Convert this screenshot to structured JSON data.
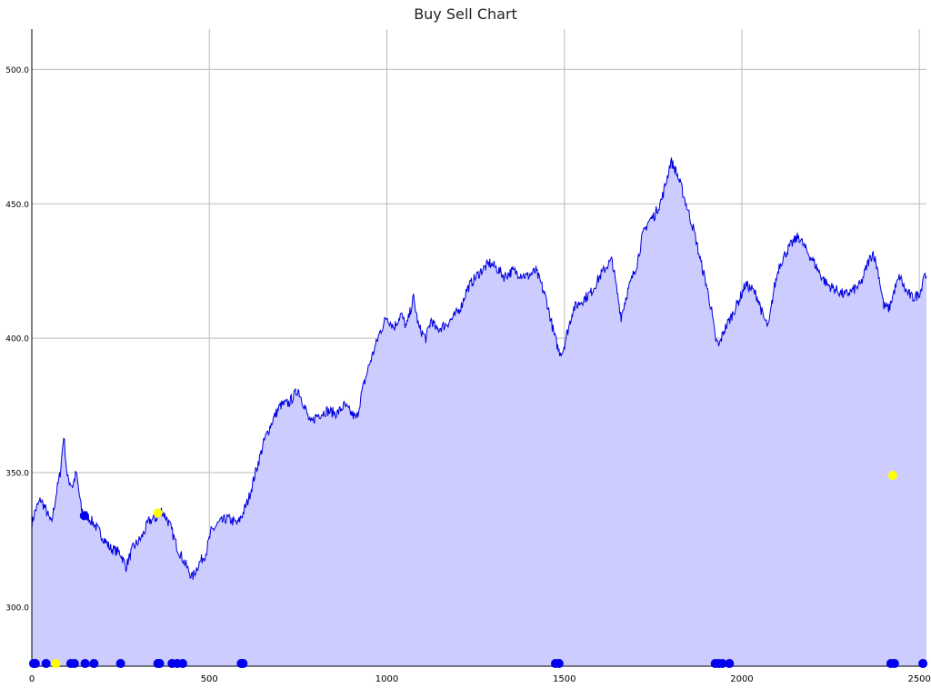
{
  "chart_data": {
    "type": "area",
    "title": "Buy Sell Chart",
    "xlabel": "",
    "ylabel": "",
    "xlim": [
      0,
      2520
    ],
    "ylim": [
      278,
      515
    ],
    "x_ticks": [
      0,
      500,
      1000,
      1500,
      2000,
      2500
    ],
    "y_ticks": [
      300,
      350,
      400,
      450,
      500
    ],
    "x_tick_labels": [
      "0",
      "500",
      "1000",
      "1500",
      "2000",
      "2500"
    ],
    "y_tick_labels": [
      "300.0",
      "350.0",
      "400.0",
      "450.0",
      "500.0"
    ],
    "grid": true,
    "colors": {
      "line": "#0000dd",
      "fill": "#ccccff",
      "buy_marker": "#0000ee",
      "sell_marker": "#ffff00",
      "grid": "#bbbbbb"
    },
    "series": [
      {
        "style": "filled-line",
        "points": [
          [
            0,
            331
          ],
          [
            10,
            336
          ],
          [
            25,
            340
          ],
          [
            40,
            336
          ],
          [
            55,
            331
          ],
          [
            70,
            343
          ],
          [
            80,
            350
          ],
          [
            90,
            364
          ],
          [
            100,
            348
          ],
          [
            115,
            345
          ],
          [
            125,
            350
          ],
          [
            140,
            336
          ],
          [
            155,
            334
          ],
          [
            175,
            331
          ],
          [
            200,
            326
          ],
          [
            220,
            322
          ],
          [
            250,
            320
          ],
          [
            265,
            315
          ],
          [
            285,
            322
          ],
          [
            310,
            326
          ],
          [
            330,
            332
          ],
          [
            350,
            333
          ],
          [
            365,
            336
          ],
          [
            380,
            333
          ],
          [
            390,
            330
          ],
          [
            410,
            322
          ],
          [
            425,
            318
          ],
          [
            440,
            314
          ],
          [
            452,
            311
          ],
          [
            470,
            316
          ],
          [
            490,
            320
          ],
          [
            505,
            328
          ],
          [
            525,
            331
          ],
          [
            550,
            333
          ],
          [
            580,
            331
          ],
          [
            595,
            335
          ],
          [
            610,
            340
          ],
          [
            630,
            350
          ],
          [
            655,
            362
          ],
          [
            680,
            370
          ],
          [
            700,
            375
          ],
          [
            725,
            376
          ],
          [
            750,
            381
          ],
          [
            770,
            374
          ],
          [
            785,
            368
          ],
          [
            800,
            371
          ],
          [
            830,
            373
          ],
          [
            860,
            372
          ],
          [
            880,
            375
          ],
          [
            900,
            372
          ],
          [
            915,
            370
          ],
          [
            930,
            380
          ],
          [
            950,
            390
          ],
          [
            980,
            402
          ],
          [
            1000,
            408
          ],
          [
            1020,
            404
          ],
          [
            1040,
            409
          ],
          [
            1055,
            404
          ],
          [
            1075,
            415
          ],
          [
            1090,
            404
          ],
          [
            1110,
            400
          ],
          [
            1125,
            407
          ],
          [
            1140,
            403
          ],
          [
            1165,
            405
          ],
          [
            1190,
            408
          ],
          [
            1210,
            412
          ],
          [
            1225,
            418
          ],
          [
            1240,
            421
          ],
          [
            1265,
            425
          ],
          [
            1290,
            428
          ],
          [
            1310,
            426
          ],
          [
            1330,
            423
          ],
          [
            1355,
            425
          ],
          [
            1375,
            424
          ],
          [
            1395,
            423
          ],
          [
            1420,
            425
          ],
          [
            1435,
            420
          ],
          [
            1450,
            414
          ],
          [
            1470,
            402
          ],
          [
            1485,
            395
          ],
          [
            1495,
            395
          ],
          [
            1510,
            403
          ],
          [
            1525,
            411
          ],
          [
            1550,
            414
          ],
          [
            1575,
            417
          ],
          [
            1600,
            423
          ],
          [
            1620,
            427
          ],
          [
            1635,
            429
          ],
          [
            1645,
            420
          ],
          [
            1660,
            408
          ],
          [
            1675,
            416
          ],
          [
            1690,
            422
          ],
          [
            1705,
            428
          ],
          [
            1720,
            438
          ],
          [
            1735,
            443
          ],
          [
            1755,
            446
          ],
          [
            1775,
            452
          ],
          [
            1790,
            460
          ],
          [
            1800,
            466
          ],
          [
            1815,
            462
          ],
          [
            1830,
            456
          ],
          [
            1845,
            449
          ],
          [
            1865,
            440
          ],
          [
            1885,
            428
          ],
          [
            1900,
            420
          ],
          [
            1915,
            410
          ],
          [
            1925,
            400
          ],
          [
            1935,
            397
          ],
          [
            1950,
            403
          ],
          [
            1970,
            408
          ],
          [
            1995,
            415
          ],
          [
            2010,
            420
          ],
          [
            2030,
            418
          ],
          [
            2045,
            415
          ],
          [
            2060,
            408
          ],
          [
            2075,
            404
          ],
          [
            2090,
            418
          ],
          [
            2105,
            427
          ],
          [
            2125,
            432
          ],
          [
            2140,
            435
          ],
          [
            2160,
            438
          ],
          [
            2180,
            433
          ],
          [
            2200,
            429
          ],
          [
            2220,
            424
          ],
          [
            2240,
            420
          ],
          [
            2265,
            418
          ],
          [
            2290,
            416
          ],
          [
            2315,
            418
          ],
          [
            2335,
            420
          ],
          [
            2355,
            428
          ],
          [
            2370,
            432
          ],
          [
            2385,
            424
          ],
          [
            2400,
            412
          ],
          [
            2415,
            411
          ],
          [
            2430,
            418
          ],
          [
            2445,
            423
          ],
          [
            2460,
            418
          ],
          [
            2480,
            415
          ],
          [
            2495,
            416
          ],
          [
            2505,
            418
          ],
          [
            2512,
            424
          ],
          [
            2520,
            423
          ]
        ]
      }
    ],
    "markers": {
      "buy": {
        "x": [
          5,
          10,
          40,
          110,
          120,
          150,
          175,
          250,
          355,
          360,
          395,
          410,
          425,
          590,
          595,
          1475,
          1485,
          1925,
          1935,
          1945,
          1965,
          2420,
          2430,
          2510
        ],
        "y": [
          279,
          279,
          279,
          279,
          279,
          279,
          279,
          279,
          279,
          279,
          279,
          279,
          279,
          279,
          279,
          279,
          279,
          279,
          279,
          279,
          279,
          279,
          279,
          279
        ]
      },
      "buy_upper": {
        "x": [
          148
        ],
        "y": [
          334
        ]
      },
      "sell": {
        "x": [
          68,
          355,
          2425
        ],
        "y": [
          279,
          335,
          349
        ]
      }
    }
  }
}
